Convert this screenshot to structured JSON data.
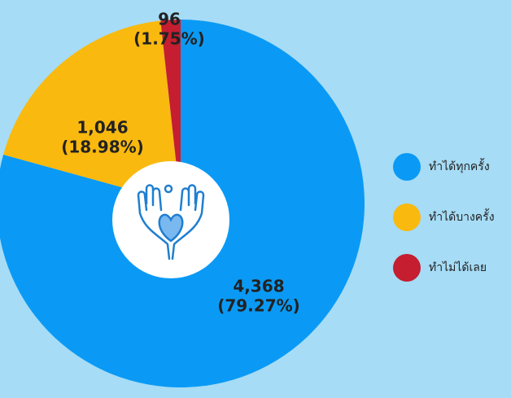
{
  "chart_data": {
    "type": "pie",
    "categories": [
      "ทำได้ทุกครั้ง",
      "ทำได้บางครั้ง",
      "ทำไม่ได้เลย"
    ],
    "values": [
      4368,
      1046,
      96
    ],
    "value_labels": [
      "4,368",
      "1,046",
      "96"
    ],
    "percent_labels": [
      "(79.27%)",
      "(18.98%)",
      "(1.75%)"
    ],
    "colors": [
      "#0a9af5",
      "#f9b90e",
      "#c41e30"
    ],
    "legend": "right"
  }
}
